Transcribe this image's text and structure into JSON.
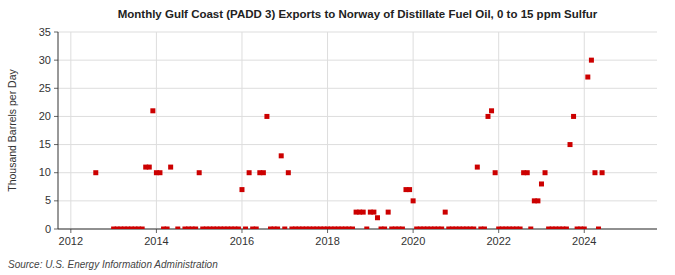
{
  "chart_data": {
    "type": "scatter",
    "title": "Monthly Gulf Coast (PADD 3) Exports to Norway of Distillate Fuel Oil, 0 to 15 ppm Sulfur",
    "y_label": "Thousand Barrels per Day",
    "source": "Source: U.S. Energy Information Administration",
    "color": "#cc0000",
    "marker": "square",
    "grid": true,
    "xlim": [
      2011.7,
      2025.7
    ],
    "xticks": [
      2012,
      2014,
      2016,
      2018,
      2020,
      2022,
      2024
    ],
    "ylim": [
      0,
      35
    ],
    "yticks": [
      0,
      5,
      10,
      15,
      20,
      25,
      30,
      35
    ],
    "x": [
      2012.583,
      2013.0,
      2013.083,
      2013.167,
      2013.25,
      2013.333,
      2013.417,
      2013.5,
      2013.583,
      2013.667,
      2013.75,
      2013.833,
      2013.917,
      2014.0,
      2014.083,
      2014.167,
      2014.25,
      2014.333,
      2014.5,
      2014.667,
      2014.75,
      2014.833,
      2014.917,
      2015.0,
      2015.083,
      2015.167,
      2015.25,
      2015.333,
      2015.417,
      2015.5,
      2015.583,
      2015.667,
      2015.75,
      2015.833,
      2015.917,
      2016.0,
      2016.083,
      2016.167,
      2016.25,
      2016.333,
      2016.417,
      2016.5,
      2016.583,
      2016.667,
      2016.75,
      2016.833,
      2016.917,
      2017.0,
      2017.083,
      2017.167,
      2017.25,
      2017.333,
      2017.417,
      2017.5,
      2017.583,
      2017.667,
      2017.75,
      2017.833,
      2017.917,
      2018.0,
      2018.083,
      2018.167,
      2018.25,
      2018.333,
      2018.417,
      2018.5,
      2018.583,
      2018.667,
      2018.75,
      2018.833,
      2018.917,
      2019.0,
      2019.083,
      2019.167,
      2019.25,
      2019.333,
      2019.417,
      2019.5,
      2019.583,
      2019.667,
      2019.75,
      2019.833,
      2019.917,
      2020.0,
      2020.083,
      2020.167,
      2020.25,
      2020.333,
      2020.417,
      2020.5,
      2020.583,
      2020.667,
      2020.75,
      2020.833,
      2020.917,
      2021.0,
      2021.083,
      2021.167,
      2021.25,
      2021.333,
      2021.417,
      2021.5,
      2021.583,
      2021.667,
      2021.75,
      2021.833,
      2021.917,
      2022.0,
      2022.083,
      2022.167,
      2022.25,
      2022.333,
      2022.417,
      2022.5,
      2022.583,
      2022.667,
      2022.75,
      2022.833,
      2022.917,
      2023.0,
      2023.083,
      2023.167,
      2023.25,
      2023.333,
      2023.417,
      2023.5,
      2023.583,
      2023.667,
      2023.75,
      2023.833,
      2023.917,
      2024.0,
      2024.083,
      2024.167,
      2024.25,
      2024.333,
      2024.417
    ],
    "values": [
      10,
      0,
      0,
      0,
      0,
      0,
      0,
      0,
      0,
      0,
      11,
      11,
      21,
      10,
      10,
      0,
      0,
      11,
      0,
      0,
      0,
      0,
      0,
      10,
      0,
      0,
      0,
      0,
      0,
      0,
      0,
      0,
      0,
      0,
      0,
      7,
      0,
      10,
      0,
      0,
      10,
      10,
      20,
      0,
      0,
      0,
      13,
      0,
      10,
      0,
      0,
      0,
      0,
      0,
      0,
      0,
      0,
      0,
      0,
      0,
      0,
      0,
      0,
      0,
      0,
      0,
      0,
      3,
      3,
      3,
      0,
      3,
      3,
      2,
      0,
      0,
      3,
      0,
      0,
      0,
      0,
      7,
      7,
      5,
      0,
      0,
      0,
      0,
      0,
      0,
      0,
      0,
      3,
      0,
      0,
      0,
      0,
      0,
      0,
      0,
      0,
      11,
      0,
      0,
      20,
      21,
      10,
      0,
      0,
      0,
      0,
      0,
      0,
      0,
      10,
      10,
      0,
      5,
      5,
      8,
      10,
      0,
      0,
      0,
      0,
      0,
      0,
      15,
      20,
      0,
      0,
      0,
      27,
      30,
      10,
      0,
      10
    ]
  }
}
